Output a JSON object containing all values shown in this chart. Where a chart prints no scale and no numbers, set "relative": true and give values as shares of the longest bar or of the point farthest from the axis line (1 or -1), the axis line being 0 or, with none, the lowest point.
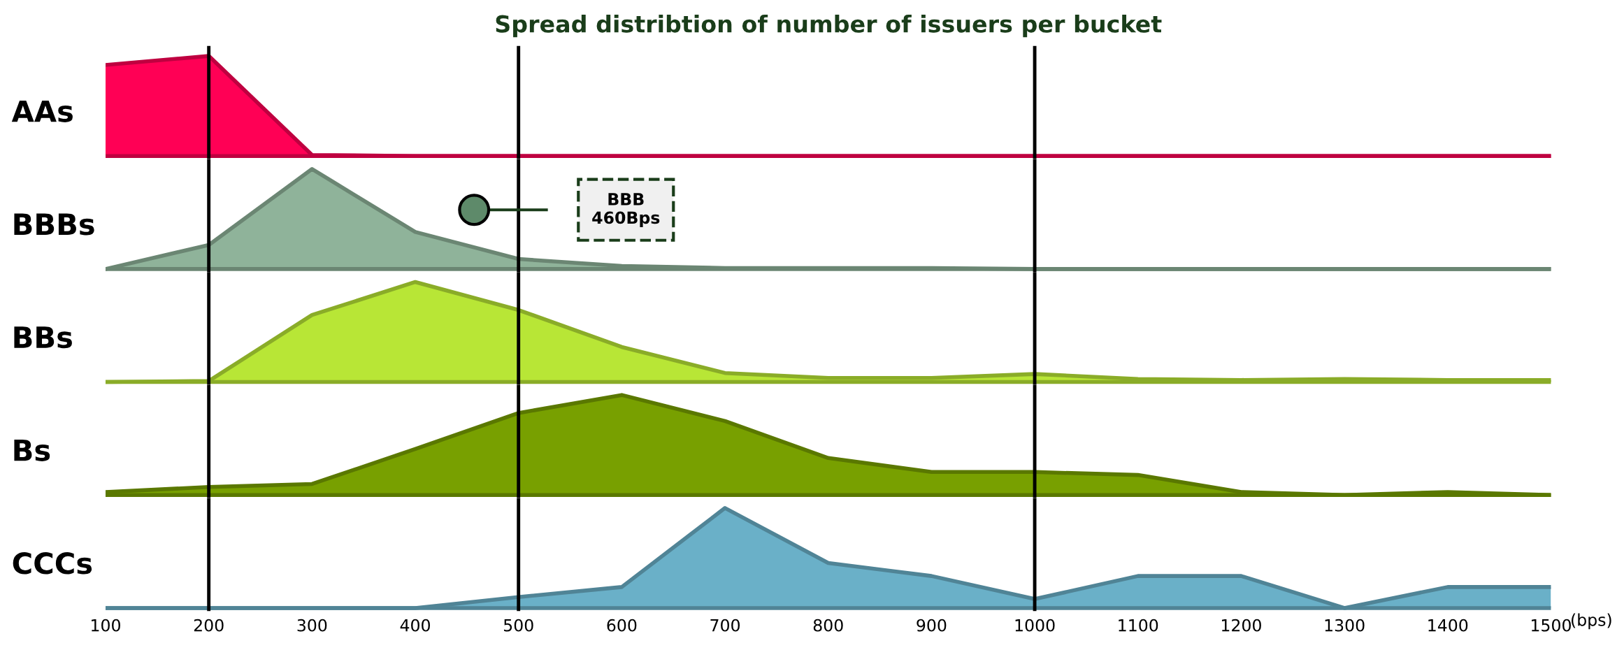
{
  "chart_data": [
    {
      "type": "area",
      "relative": true,
      "title": "Spread distribtion of number of issuers per bucket",
      "ylabel": "AAs",
      "x": [
        100,
        200,
        300,
        400,
        500,
        600,
        700,
        800,
        900,
        1000,
        1100,
        1200,
        1300,
        1400,
        1500
      ],
      "xlim": [
        100,
        1500
      ],
      "xticks": [
        100,
        200,
        300,
        400,
        500,
        600,
        700,
        800,
        900,
        1000,
        1100,
        1200,
        1300,
        1400,
        1500
      ],
      "tick_labels": false,
      "color": "#ff0055",
      "values": [
        0.91,
        1,
        0.01,
        0,
        0,
        0,
        0,
        0,
        0,
        0,
        0,
        0,
        0,
        0,
        0
      ],
      "ref_lines": [
        {
          "axis": "x",
          "value": 200,
          "color": "#000000"
        },
        {
          "axis": "x",
          "value": 500,
          "color": "#000000"
        },
        {
          "axis": "x",
          "value": 1000,
          "color": "#000000"
        }
      ]
    },
    {
      "type": "area",
      "relative": true,
      "ylabel": "BBBs",
      "x": [
        100,
        200,
        300,
        400,
        500,
        600,
        700,
        800,
        900,
        1000,
        1100,
        1200,
        1300,
        1400,
        1500
      ],
      "xlim": [
        100,
        1500
      ],
      "xticks": [
        100,
        200,
        300,
        400,
        500,
        600,
        700,
        800,
        900,
        1000,
        1100,
        1200,
        1300,
        1400,
        1500
      ],
      "tick_labels": false,
      "color": "#8fb39a",
      "values": [
        0,
        0.24,
        1,
        0.37,
        0.1,
        0.03,
        0.01,
        0.01,
        0.01,
        0,
        0,
        0,
        0,
        0,
        0
      ],
      "ref_lines": [
        {
          "axis": "x",
          "value": 200,
          "color": "#000000"
        },
        {
          "axis": "x",
          "value": 500,
          "color": "#000000"
        },
        {
          "axis": "x",
          "value": 1000,
          "color": "#000000"
        }
      ],
      "annotations": [
        "BBB\n460Bps"
      ]
    },
    {
      "type": "area",
      "relative": true,
      "ylabel": "BBs",
      "x": [
        100,
        200,
        300,
        400,
        500,
        600,
        700,
        800,
        900,
        1000,
        1100,
        1200,
        1300,
        1400,
        1500
      ],
      "xlim": [
        100,
        1500
      ],
      "xticks": [
        100,
        200,
        300,
        400,
        500,
        600,
        700,
        800,
        900,
        1000,
        1100,
        1200,
        1300,
        1400,
        1500
      ],
      "tick_labels": false,
      "color": "#b8e636",
      "values": [
        0,
        0.01,
        0.67,
        1,
        0.72,
        0.35,
        0.09,
        0.04,
        0.04,
        0.08,
        0.03,
        0.02,
        0.03,
        0.02,
        0.02
      ],
      "ref_lines": [
        {
          "axis": "x",
          "value": 200,
          "color": "#000000"
        },
        {
          "axis": "x",
          "value": 500,
          "color": "#000000"
        },
        {
          "axis": "x",
          "value": 1000,
          "color": "#000000"
        }
      ]
    },
    {
      "type": "area",
      "relative": true,
      "ylabel": "Bs",
      "x": [
        100,
        200,
        300,
        400,
        500,
        600,
        700,
        800,
        900,
        1000,
        1100,
        1200,
        1300,
        1400,
        1500
      ],
      "xlim": [
        100,
        1500
      ],
      "xticks": [
        100,
        200,
        300,
        400,
        500,
        600,
        700,
        800,
        900,
        1000,
        1100,
        1200,
        1300,
        1400,
        1500
      ],
      "tick_labels": false,
      "color": "#78a000",
      "values": [
        0.03,
        0.08,
        0.11,
        0.46,
        0.82,
        1,
        0.74,
        0.37,
        0.23,
        0.23,
        0.2,
        0.03,
        0,
        0.03,
        0
      ],
      "ref_lines": [
        {
          "axis": "x",
          "value": 200,
          "color": "#000000"
        },
        {
          "axis": "x",
          "value": 500,
          "color": "#000000"
        },
        {
          "axis": "x",
          "value": 1000,
          "color": "#000000"
        }
      ]
    },
    {
      "type": "area",
      "relative": true,
      "ylabel": "CCCs",
      "xlabel": "(bps)",
      "x": [
        100,
        200,
        300,
        400,
        500,
        600,
        700,
        800,
        900,
        1000,
        1100,
        1200,
        1300,
        1400,
        1500
      ],
      "xlim": [
        100,
        1500
      ],
      "xticks": [
        100,
        200,
        300,
        400,
        500,
        600,
        700,
        800,
        900,
        1000,
        1100,
        1200,
        1300,
        1400,
        1500
      ],
      "tick_labels": "x",
      "color": "#6ab0c8",
      "values": [
        0,
        0,
        0,
        0,
        0.11,
        0.21,
        1,
        0.45,
        0.32,
        0.09,
        0.32,
        0.32,
        0,
        0.21,
        0.21
      ],
      "ref_lines": [
        {
          "axis": "x",
          "value": 200,
          "color": "#000000"
        },
        {
          "axis": "x",
          "value": 500,
          "color": "#000000"
        },
        {
          "axis": "x",
          "value": 1000,
          "color": "#000000"
        }
      ]
    }
  ]
}
